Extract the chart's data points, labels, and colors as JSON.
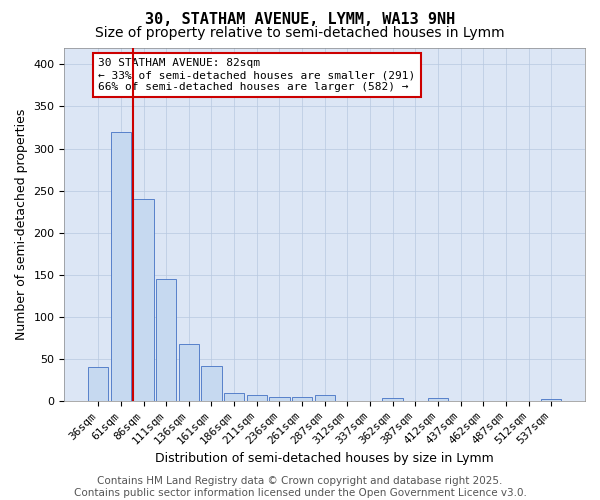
{
  "title": "30, STATHAM AVENUE, LYMM, WA13 9NH",
  "subtitle": "Size of property relative to semi-detached houses in Lymm",
  "xlabel": "Distribution of semi-detached houses by size in Lymm",
  "ylabel": "Number of semi-detached properties",
  "bar_labels": [
    "36sqm",
    "61sqm",
    "86sqm",
    "111sqm",
    "136sqm",
    "161sqm",
    "186sqm",
    "211sqm",
    "236sqm",
    "261sqm",
    "287sqm",
    "312sqm",
    "337sqm",
    "362sqm",
    "387sqm",
    "412sqm",
    "437sqm",
    "462sqm",
    "487sqm",
    "512sqm",
    "537sqm"
  ],
  "bar_values": [
    40,
    320,
    240,
    145,
    68,
    42,
    10,
    7,
    5,
    5,
    7,
    0,
    0,
    3,
    0,
    3,
    0,
    0,
    0,
    0,
    2
  ],
  "bar_color": "#c6d9f0",
  "bar_edge_color": "#4472c4",
  "vline_x_index": 2,
  "vline_color": "#cc0000",
  "annotation_text": "30 STATHAM AVENUE: 82sqm\n← 33% of semi-detached houses are smaller (291)\n66% of semi-detached houses are larger (582) →",
  "annotation_box_facecolor": "#ffffff",
  "annotation_box_edgecolor": "#cc0000",
  "ylim": [
    0,
    420
  ],
  "yticks": [
    0,
    50,
    100,
    150,
    200,
    250,
    300,
    350,
    400
  ],
  "grid_color": "#b8c8e0",
  "plot_bg_color": "#dce6f5",
  "footer_text": "Contains HM Land Registry data © Crown copyright and database right 2025.\nContains public sector information licensed under the Open Government Licence v3.0.",
  "title_fontsize": 11,
  "subtitle_fontsize": 10,
  "axis_label_fontsize": 9,
  "tick_fontsize": 8,
  "annotation_fontsize": 8,
  "footer_fontsize": 7.5
}
